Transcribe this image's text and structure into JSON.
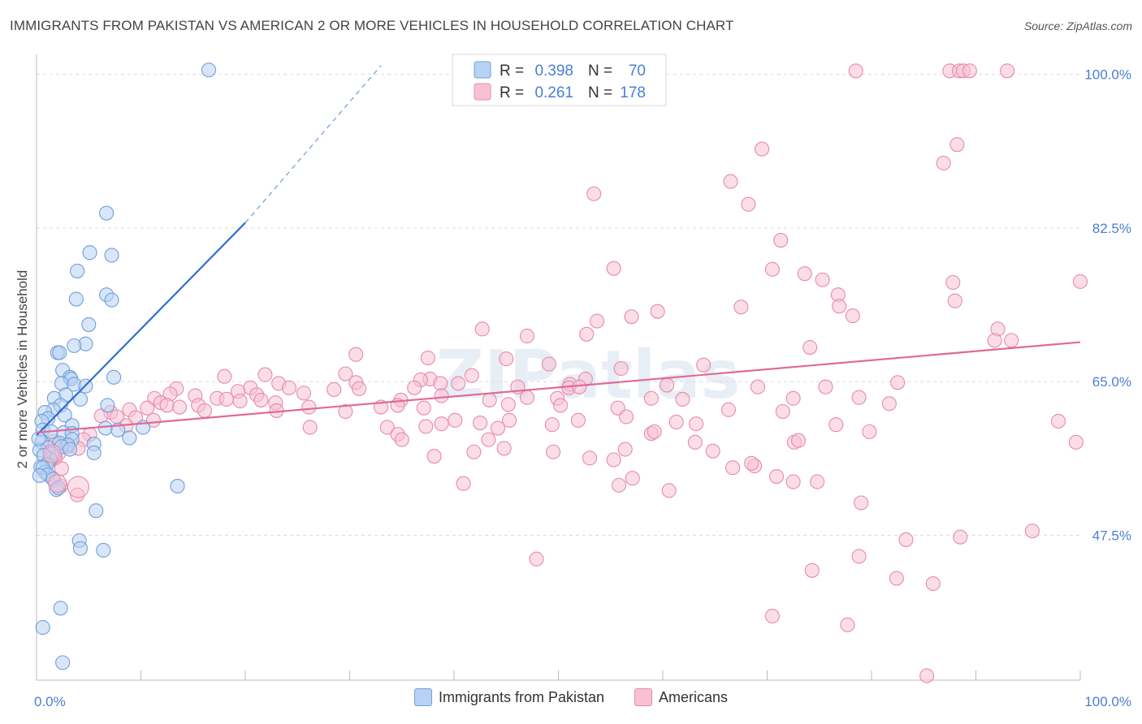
{
  "title": "IMMIGRANTS FROM PAKISTAN VS AMERICAN 2 OR MORE VEHICLES IN HOUSEHOLD CORRELATION CHART",
  "source": "Source: ZipAtlas.com",
  "watermark": "ZIPatlas",
  "colors": {
    "blue_fill": "#b8d2f3",
    "blue_stroke": "#6fa0dc",
    "blue_line": "#2f6fd0",
    "pink_fill": "#f7c1d3",
    "pink_stroke": "#e88aaa",
    "pink_line": "#e06a96",
    "tick_label": "#4a7fd4",
    "grid": "#dcdcdc",
    "axis": "#999999"
  },
  "chart_data": {
    "type": "scatter",
    "ylabel": "2 or more Vehicles in Household",
    "xlim": [
      0,
      100
    ],
    "ylim": [
      31,
      102
    ],
    "x_tick_labels": [
      {
        "value": 0,
        "label": "0.0%"
      },
      {
        "value": 100,
        "label": "100.0%"
      }
    ],
    "y_ticks": [
      {
        "value": 47.5,
        "label": "47.5%"
      },
      {
        "value": 65.0,
        "label": "65.0%"
      },
      {
        "value": 82.5,
        "label": "82.5%"
      },
      {
        "value": 100.0,
        "label": "100.0%"
      }
    ],
    "legend": [
      {
        "series": "Immigrants from Pakistan",
        "r_label": "R =",
        "r": "0.398",
        "n_label": "N =",
        "n": "70"
      },
      {
        "series": "Americans",
        "r_label": "R =",
        "r": "0.261",
        "n_label": "N =",
        "n": "178"
      }
    ],
    "series": [
      {
        "name": "Immigrants from Pakistan",
        "color": "blue",
        "trend": {
          "x0": 0,
          "y0": 58.9,
          "x1": 20,
          "y1": 83.1,
          "dash_x1": 33,
          "dash_y1": 101
        },
        "points": [
          [
            16.5,
            100.5
          ],
          [
            6.7,
            84.2
          ],
          [
            5.1,
            79.7
          ],
          [
            7.2,
            79.4
          ],
          [
            3.9,
            77.6
          ],
          [
            3.8,
            74.4
          ],
          [
            6.7,
            74.9
          ],
          [
            7.2,
            74.3
          ],
          [
            5.0,
            71.5
          ],
          [
            2.0,
            68.3
          ],
          [
            4.7,
            69.3
          ],
          [
            3.6,
            69.1
          ],
          [
            2.2,
            68.3
          ],
          [
            7.4,
            65.5
          ],
          [
            2.5,
            66.3
          ],
          [
            3.2,
            65.5
          ],
          [
            3.3,
            65.3
          ],
          [
            2.4,
            64.8
          ],
          [
            3.6,
            64.7
          ],
          [
            4.7,
            64.5
          ],
          [
            2.8,
            63.5
          ],
          [
            1.7,
            63.1
          ],
          [
            2.3,
            62.3
          ],
          [
            4.2,
            63.0
          ],
          [
            6.8,
            62.3
          ],
          [
            1.6,
            61.8
          ],
          [
            0.8,
            61.5
          ],
          [
            2.7,
            61.2
          ],
          [
            1.1,
            60.8
          ],
          [
            0.5,
            60.5
          ],
          [
            3.4,
            60.0
          ],
          [
            6.6,
            59.7
          ],
          [
            0.6,
            59.5
          ],
          [
            10.2,
            59.8
          ],
          [
            7.8,
            59.5
          ],
          [
            1.4,
            59.3
          ],
          [
            2.6,
            59.2
          ],
          [
            3.4,
            59.1
          ],
          [
            8.9,
            58.6
          ],
          [
            3.4,
            58.4
          ],
          [
            0.5,
            58.1
          ],
          [
            2.2,
            58.0
          ],
          [
            1.1,
            57.5
          ],
          [
            3.0,
            57.8
          ],
          [
            5.5,
            57.9
          ],
          [
            2.4,
            57.6
          ],
          [
            3.2,
            57.3
          ],
          [
            0.3,
            57.2
          ],
          [
            1.5,
            56.8
          ],
          [
            5.5,
            56.9
          ],
          [
            1.3,
            56.2
          ],
          [
            0.7,
            56.6
          ],
          [
            1.0,
            55.6
          ],
          [
            0.4,
            55.3
          ],
          [
            0.8,
            54.7
          ],
          [
            0.6,
            55.2
          ],
          [
            1.1,
            54.4
          ],
          [
            0.3,
            54.3
          ],
          [
            1.6,
            53.9
          ],
          [
            13.5,
            53.1
          ],
          [
            1.9,
            52.7
          ],
          [
            2.1,
            52.9
          ],
          [
            5.7,
            50.3
          ],
          [
            4.1,
            46.9
          ],
          [
            4.2,
            46.0
          ],
          [
            6.4,
            45.8
          ],
          [
            2.3,
            39.2
          ],
          [
            0.6,
            37.0
          ],
          [
            2.5,
            33.0
          ],
          [
            0.2,
            58.5
          ]
        ]
      },
      {
        "name": "Americans",
        "color": "pink",
        "trend": {
          "x0": 0,
          "y0": 59.2,
          "x1": 100,
          "y1": 69.5
        },
        "points": [
          [
            78.5,
            100.4
          ],
          [
            87.5,
            100.4
          ],
          [
            88.4,
            100.4
          ],
          [
            88.8,
            100.4
          ],
          [
            93.0,
            100.4
          ],
          [
            89.4,
            100.4
          ],
          [
            88.2,
            92.0
          ],
          [
            69.5,
            91.5
          ],
          [
            86.9,
            89.9
          ],
          [
            66.5,
            87.8
          ],
          [
            53.4,
            86.4
          ],
          [
            68.2,
            85.2
          ],
          [
            71.3,
            81.1
          ],
          [
            55.3,
            77.9
          ],
          [
            70.5,
            77.8
          ],
          [
            73.6,
            77.3
          ],
          [
            75.3,
            76.6
          ],
          [
            100.0,
            76.4
          ],
          [
            87.8,
            76.3
          ],
          [
            76.8,
            74.9
          ],
          [
            88.0,
            74.2
          ],
          [
            67.5,
            73.5
          ],
          [
            59.5,
            73.0
          ],
          [
            76.9,
            73.6
          ],
          [
            78.2,
            72.5
          ],
          [
            57.0,
            72.4
          ],
          [
            53.7,
            71.9
          ],
          [
            42.7,
            71.0
          ],
          [
            92.1,
            71.0
          ],
          [
            47.0,
            70.2
          ],
          [
            52.7,
            70.4
          ],
          [
            91.8,
            69.7
          ],
          [
            93.4,
            69.7
          ],
          [
            74.1,
            68.9
          ],
          [
            30.6,
            68.1
          ],
          [
            37.5,
            67.7
          ],
          [
            45.0,
            67.6
          ],
          [
            49.1,
            67.0
          ],
          [
            63.9,
            66.9
          ],
          [
            56.0,
            66.5
          ],
          [
            29.6,
            65.9
          ],
          [
            41.7,
            65.7
          ],
          [
            21.9,
            65.8
          ],
          [
            18.0,
            65.6
          ],
          [
            37.7,
            65.3
          ],
          [
            38.7,
            64.8
          ],
          [
            30.6,
            64.9
          ],
          [
            40.4,
            64.8
          ],
          [
            36.8,
            65.2
          ],
          [
            52.6,
            65.3
          ],
          [
            51.1,
            64.7
          ],
          [
            82.5,
            64.9
          ],
          [
            75.6,
            64.4
          ],
          [
            51.0,
            64.3
          ],
          [
            52.0,
            64.4
          ],
          [
            46.1,
            64.4
          ],
          [
            69.1,
            64.4
          ],
          [
            60.4,
            64.6
          ],
          [
            23.2,
            64.8
          ],
          [
            24.2,
            64.3
          ],
          [
            36.2,
            64.3
          ],
          [
            30.9,
            64.2
          ],
          [
            13.4,
            64.2
          ],
          [
            20.5,
            64.3
          ],
          [
            21.1,
            63.5
          ],
          [
            19.3,
            63.9
          ],
          [
            25.6,
            63.7
          ],
          [
            28.5,
            64.1
          ],
          [
            12.8,
            63.6
          ],
          [
            17.3,
            63.1
          ],
          [
            15.2,
            63.4
          ],
          [
            18.2,
            63.0
          ],
          [
            21.5,
            62.9
          ],
          [
            19.5,
            62.8
          ],
          [
            11.3,
            63.1
          ],
          [
            11.9,
            62.6
          ],
          [
            22.9,
            62.6
          ],
          [
            34.9,
            62.9
          ],
          [
            38.8,
            63.4
          ],
          [
            43.4,
            62.9
          ],
          [
            47.0,
            63.2
          ],
          [
            49.9,
            63.1
          ],
          [
            58.9,
            63.1
          ],
          [
            61.9,
            63.0
          ],
          [
            72.5,
            63.1
          ],
          [
            78.8,
            63.2
          ],
          [
            81.7,
            62.5
          ],
          [
            12.5,
            62.3
          ],
          [
            10.6,
            62.0
          ],
          [
            13.7,
            62.1
          ],
          [
            15.5,
            62.3
          ],
          [
            16.1,
            61.7
          ],
          [
            26.1,
            62.1
          ],
          [
            33.0,
            62.1
          ],
          [
            34.6,
            62.3
          ],
          [
            37.1,
            62.0
          ],
          [
            45.2,
            62.4
          ],
          [
            50.2,
            62.3
          ],
          [
            55.7,
            62.0
          ],
          [
            66.3,
            61.8
          ],
          [
            71.5,
            61.6
          ],
          [
            23.0,
            61.7
          ],
          [
            29.6,
            61.6
          ],
          [
            7.1,
            61.5
          ],
          [
            8.9,
            61.8
          ],
          [
            6.2,
            61.1
          ],
          [
            7.7,
            61.0
          ],
          [
            11.2,
            60.6
          ],
          [
            9.5,
            60.9
          ],
          [
            8.6,
            60.0
          ],
          [
            40.1,
            60.6
          ],
          [
            45.3,
            60.6
          ],
          [
            51.9,
            60.6
          ],
          [
            38.8,
            60.2
          ],
          [
            49.4,
            60.1
          ],
          [
            56.5,
            61.0
          ],
          [
            63.2,
            60.2
          ],
          [
            26.2,
            59.8
          ],
          [
            33.6,
            59.8
          ],
          [
            37.3,
            59.9
          ],
          [
            42.5,
            60.3
          ],
          [
            44.2,
            59.7
          ],
          [
            58.9,
            59.1
          ],
          [
            59.2,
            59.3
          ],
          [
            61.3,
            60.4
          ],
          [
            76.6,
            60.1
          ],
          [
            79.8,
            59.3
          ],
          [
            97.9,
            60.5
          ],
          [
            34.6,
            59.0
          ],
          [
            35.0,
            58.4
          ],
          [
            43.3,
            58.4
          ],
          [
            63.1,
            58.1
          ],
          [
            72.6,
            58.1
          ],
          [
            73.0,
            58.3
          ],
          [
            5.1,
            59.0
          ],
          [
            4.5,
            58.4
          ],
          [
            1.6,
            58.2
          ],
          [
            1.7,
            57.8
          ],
          [
            3.0,
            57.6
          ],
          [
            1.7,
            56.5
          ],
          [
            2.1,
            56.8
          ],
          [
            4.0,
            57.4
          ],
          [
            44.8,
            57.4
          ],
          [
            49.5,
            57.0
          ],
          [
            56.4,
            57.3
          ],
          [
            64.8,
            57.1
          ],
          [
            38.1,
            56.5
          ],
          [
            41.9,
            57.0
          ],
          [
            53.0,
            56.3
          ],
          [
            55.3,
            56.1
          ],
          [
            68.8,
            55.4
          ],
          [
            66.7,
            55.2
          ],
          [
            68.5,
            55.7
          ],
          [
            1.8,
            56.3
          ],
          [
            1.2,
            55.9
          ],
          [
            2.4,
            55.1
          ],
          [
            1.5,
            54.0
          ],
          [
            57.1,
            54.0
          ],
          [
            70.9,
            54.2
          ],
          [
            72.5,
            53.6
          ],
          [
            74.8,
            53.6
          ],
          [
            40.9,
            53.4
          ],
          [
            55.8,
            53.2
          ],
          [
            60.6,
            52.6
          ],
          [
            2.3,
            53.1
          ],
          [
            3.9,
            52.1
          ],
          [
            79.0,
            51.2
          ],
          [
            95.4,
            48.0
          ],
          [
            83.3,
            47.0
          ],
          [
            78.8,
            45.1
          ],
          [
            74.3,
            43.5
          ],
          [
            82.4,
            42.6
          ],
          [
            85.9,
            42.0
          ],
          [
            70.5,
            38.3
          ],
          [
            77.7,
            37.3
          ],
          [
            85.3,
            31.5
          ],
          [
            47.9,
            44.8
          ],
          [
            88.5,
            47.3
          ],
          [
            99.6,
            58.1
          ]
        ]
      }
    ]
  }
}
